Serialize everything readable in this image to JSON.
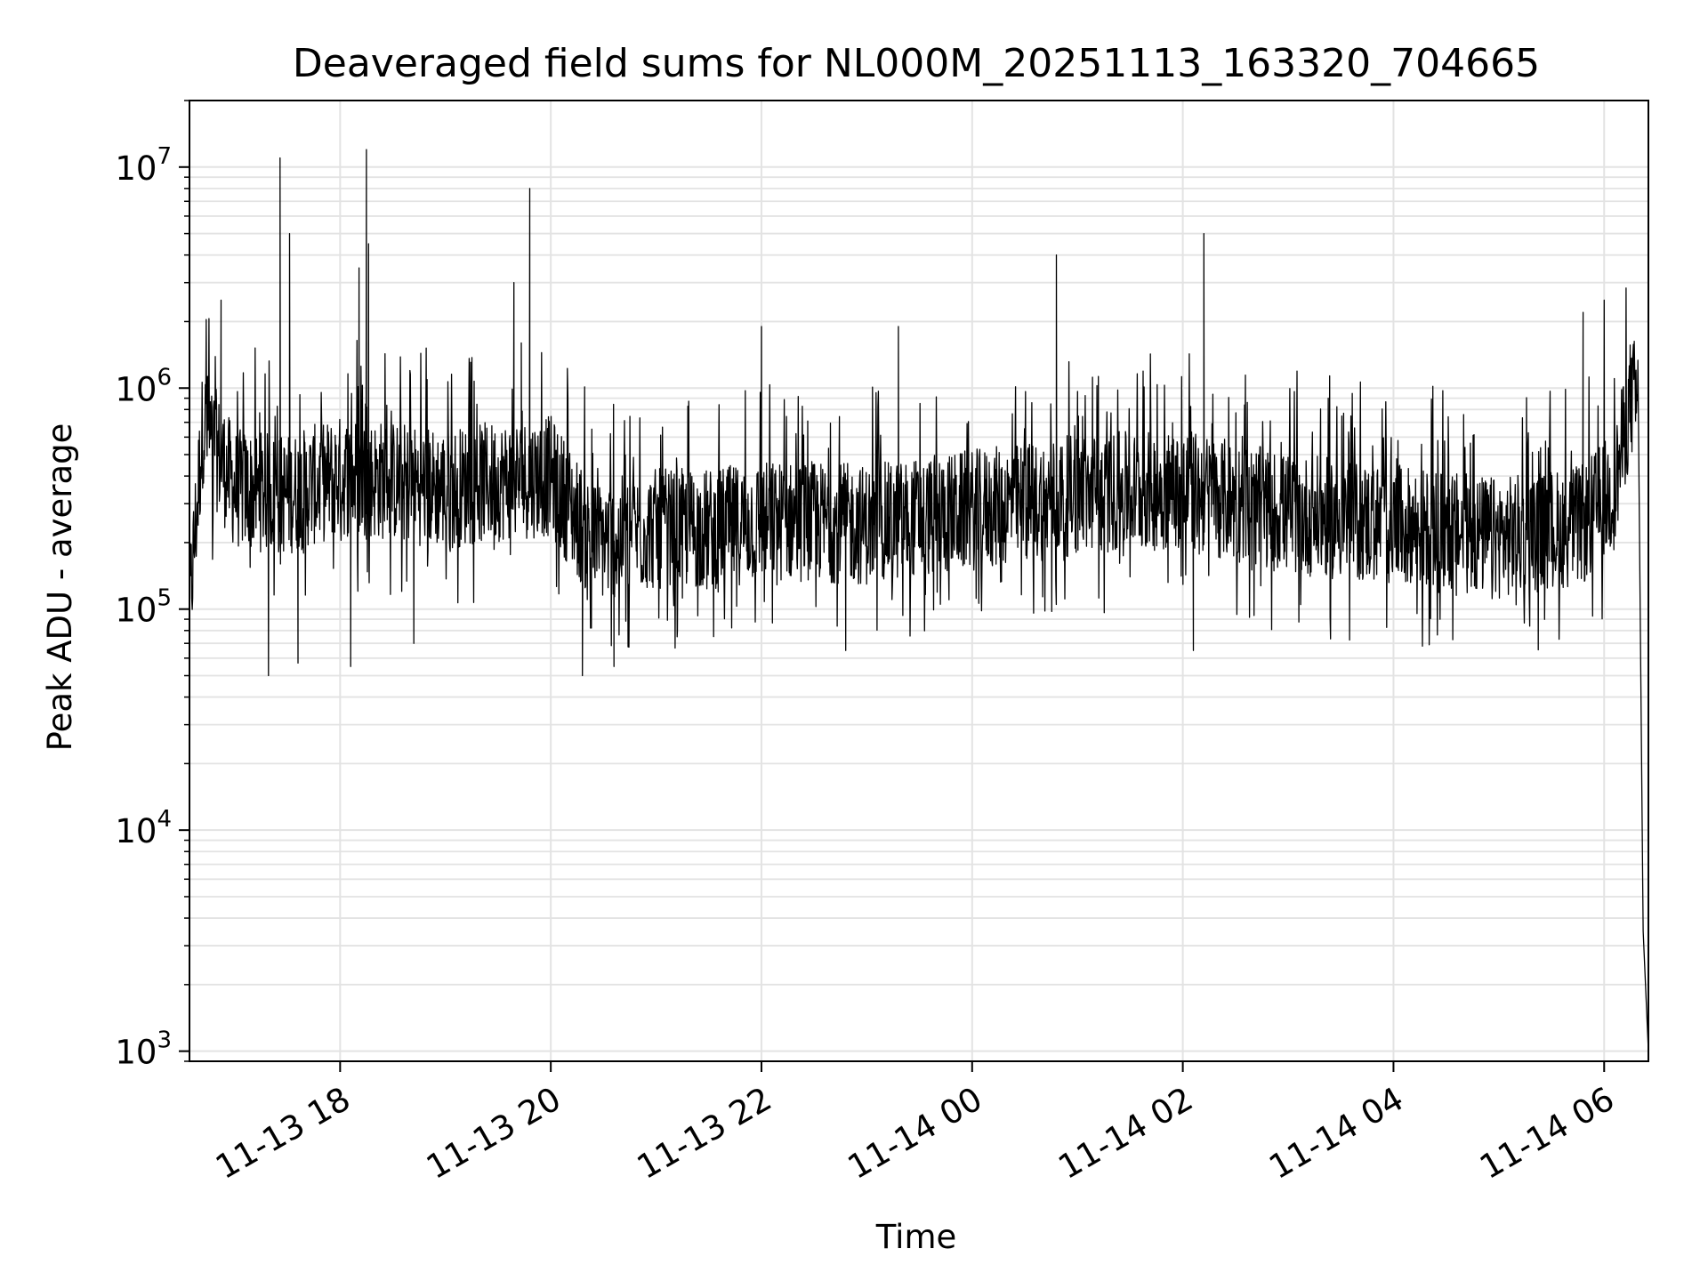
{
  "chart_data": {
    "type": "line",
    "title": "Deaveraged field sums for NL000M_20251113_163320_704665",
    "xlabel": "Time",
    "ylabel": "Peak ADU - average",
    "yscale": "log",
    "ylim": [
      900,
      20000000
    ],
    "xlim_hours_from_1113_1800": [
      -1.43,
      12.42
    ],
    "grid": true,
    "line_color": "#000000",
    "grid_color": "#e3e3e3",
    "x_ticks": [
      {
        "label": "11-13 18",
        "hours": 0
      },
      {
        "label": "11-13 20",
        "hours": 2
      },
      {
        "label": "11-13 22",
        "hours": 4
      },
      {
        "label": "11-14 00",
        "hours": 6
      },
      {
        "label": "11-14 02",
        "hours": 8
      },
      {
        "label": "11-14 04",
        "hours": 10
      },
      {
        "label": "11-14 06",
        "hours": 12
      }
    ],
    "y_ticks": [
      {
        "base": "10",
        "exp": "3",
        "value": 1000
      },
      {
        "base": "10",
        "exp": "4",
        "value": 10000
      },
      {
        "base": "10",
        "exp": "5",
        "value": 100000
      },
      {
        "base": "10",
        "exp": "6",
        "value": 1000000
      },
      {
        "base": "10",
        "exp": "7",
        "value": 10000000
      }
    ],
    "baseline_profile": {
      "hours": [
        -1.43,
        -1.3,
        -1.0,
        -0.5,
        0.0,
        0.5,
        1.0,
        1.5,
        2.0,
        2.4,
        3.0,
        3.5,
        4.0,
        4.5,
        5.0,
        5.5,
        6.0,
        7.0,
        8.0,
        9.0,
        10.0,
        11.0,
        11.8,
        12.1,
        12.25
      ],
      "median": [
        100000,
        700000,
        350000,
        330000,
        400000,
        380000,
        350000,
        380000,
        400000,
        200000,
        230000,
        230000,
        250000,
        250000,
        240000,
        260000,
        280000,
        330000,
        350000,
        270000,
        240000,
        210000,
        240000,
        350000,
        900000
      ]
    },
    "spikes": [
      {
        "hours": -1.13,
        "value": 2500000
      },
      {
        "hours": -0.57,
        "value": 11000000
      },
      {
        "hours": -0.48,
        "value": 5000000
      },
      {
        "hours": 0.18,
        "value": 3500000
      },
      {
        "hours": 0.25,
        "value": 12000000
      },
      {
        "hours": 0.27,
        "value": 4500000
      },
      {
        "hours": 1.65,
        "value": 3000000
      },
      {
        "hours": 1.72,
        "value": 1600000
      },
      {
        "hours": 1.8,
        "value": 8000000
      },
      {
        "hours": 4.0,
        "value": 1900000
      },
      {
        "hours": 5.3,
        "value": 1900000
      },
      {
        "hours": 6.8,
        "value": 4000000
      },
      {
        "hours": 8.2,
        "value": 5000000
      },
      {
        "hours": 11.8,
        "value": 2200000
      },
      {
        "hours": 12.0,
        "value": 2500000
      }
    ],
    "dips": [
      {
        "hours": -0.68,
        "value": 50000
      },
      {
        "hours": -0.4,
        "value": 57000
      },
      {
        "hours": 0.1,
        "value": 55000
      },
      {
        "hours": 0.7,
        "value": 70000
      },
      {
        "hours": 2.3,
        "value": 50000
      },
      {
        "hours": 2.6,
        "value": 55000
      },
      {
        "hours": 3.2,
        "value": 75000
      },
      {
        "hours": 4.8,
        "value": 65000
      },
      {
        "hours": 8.1,
        "value": 65000
      },
      {
        "hours": 12.42,
        "value": 1000
      }
    ]
  }
}
